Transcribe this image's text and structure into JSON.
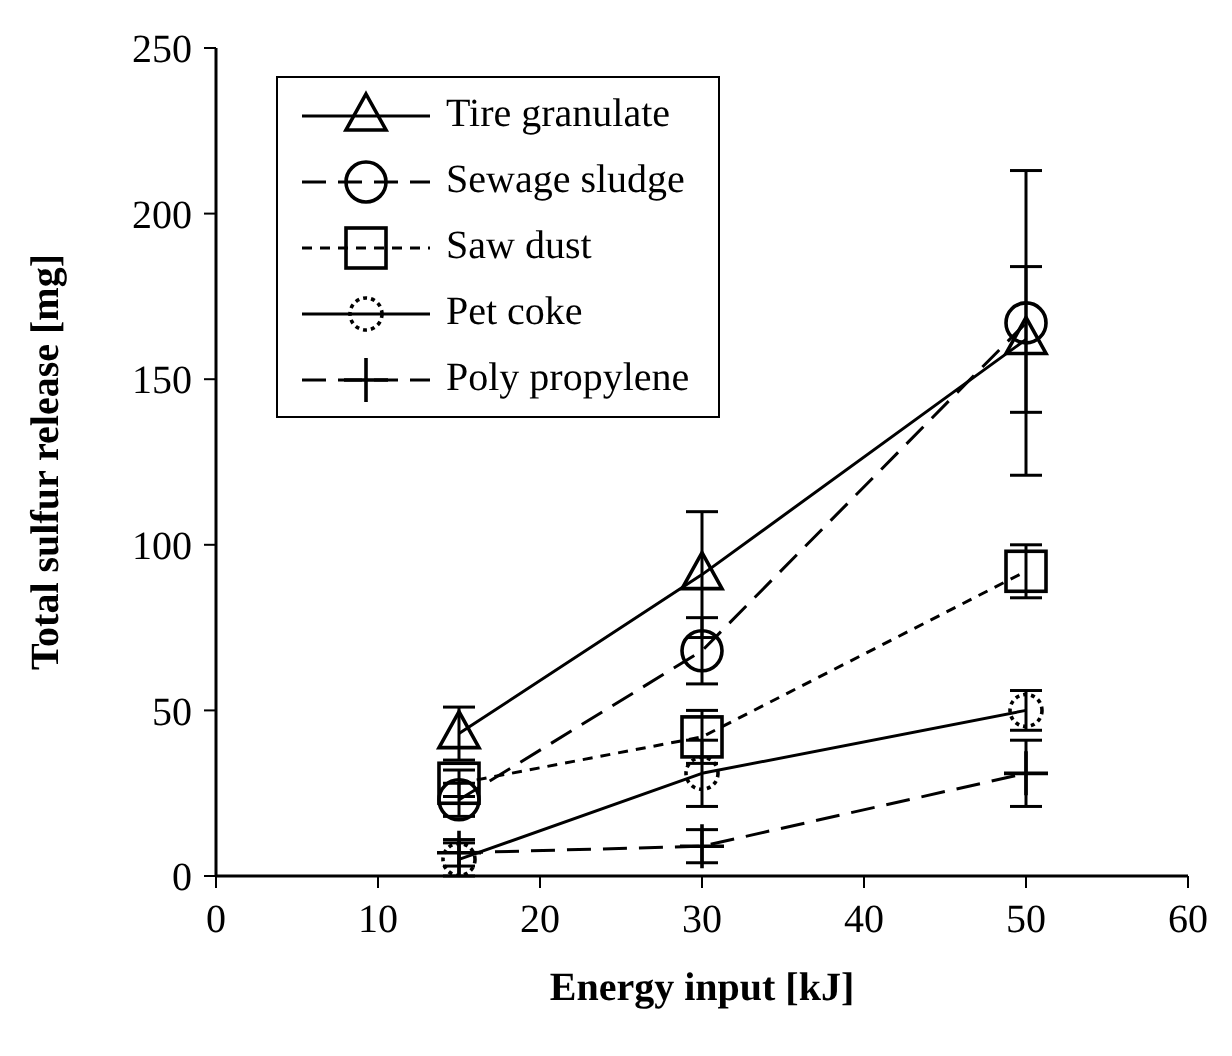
{
  "chart_data": {
    "type": "line",
    "xlabel": "Energy input [kJ]",
    "ylabel": "Total sulfur release [mg]",
    "x": [
      15,
      30,
      50
    ],
    "xlim": [
      0,
      60
    ],
    "xticks": [
      0,
      10,
      20,
      30,
      40,
      50,
      60
    ],
    "ylim": [
      0,
      250
    ],
    "yticks": [
      0,
      50,
      100,
      150,
      200,
      250
    ],
    "grid": false,
    "legend": "top left",
    "series": [
      {
        "name": "Tire granulate",
        "color": "#000000",
        "marker": "triangle",
        "line_style": "solid",
        "values": [
          43,
          91,
          162
        ],
        "errors": [
          8,
          19,
          22
        ]
      },
      {
        "name": "Sewage sludge",
        "color": "#000000",
        "marker": "circle",
        "line_style": "dashed",
        "values": [
          23,
          68,
          167
        ],
        "errors": [
          5,
          10,
          46
        ]
      },
      {
        "name": "Saw dust",
        "color": "#000000",
        "marker": "square",
        "line_style": "dotted",
        "values": [
          28,
          42,
          92
        ],
        "errors": [
          4,
          8,
          8
        ]
      },
      {
        "name": "Pet coke",
        "color": "#000000",
        "marker": "circle",
        "line_style": "solid",
        "values": [
          5,
          31,
          50
        ],
        "errors": [
          5,
          10,
          6
        ]
      },
      {
        "name": "Poly propylene",
        "color": "#000000",
        "marker": "cross",
        "line_style": "dashed",
        "values": [
          7,
          9,
          31
        ],
        "errors": [
          4,
          5,
          10
        ]
      }
    ]
  }
}
